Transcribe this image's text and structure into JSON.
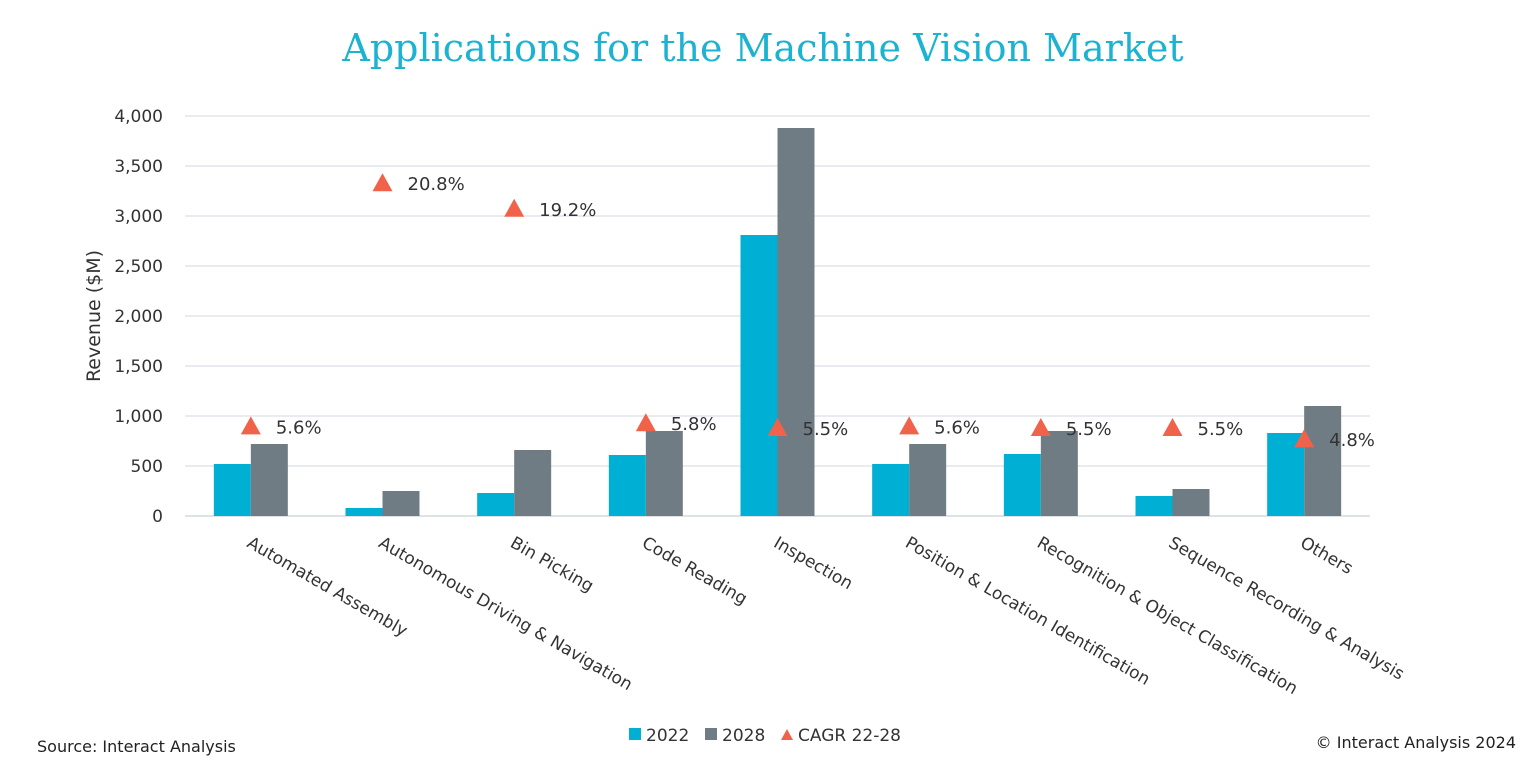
{
  "chart_data": {
    "type": "bar",
    "title": "Applications for the Machine Vision Market",
    "ylabel": "Revenue ($M)",
    "ylim": [
      0,
      4000
    ],
    "yticks": [
      "0",
      "500",
      "1,000",
      "1,500",
      "2,000",
      "2,500",
      "3,000",
      "3,500",
      "4,000"
    ],
    "grid": true,
    "legend_placement": "bottom",
    "categories": [
      "Automated Assembly",
      "Autonomous Driving & Navigation",
      "Bin Picking",
      "Code Reading",
      "Inspection",
      "Position & Location Identification",
      "Recognition & Object Classification",
      "Sequence Recording & Analysis",
      "Others"
    ],
    "series": [
      {
        "name": "2022",
        "type": "bar",
        "color": "#00b0d4",
        "values": [
          520,
          80,
          230,
          610,
          2810,
          520,
          620,
          200,
          830
        ]
      },
      {
        "name": "2028",
        "type": "bar",
        "color": "#707c84",
        "values": [
          720,
          250,
          660,
          850,
          3880,
          720,
          850,
          270,
          1100
        ]
      },
      {
        "name": "CAGR 22-28",
        "type": "marker",
        "marker": "triangle",
        "color": "#f0634a",
        "secondary_axis_range_pct": [
          0,
          25
        ],
        "values": [
          5.6,
          20.8,
          19.2,
          5.8,
          5.5,
          5.6,
          5.5,
          5.5,
          4.8
        ],
        "labels": [
          "5.6%",
          "20.8%",
          "19.2%",
          "5.8%",
          "5.5%",
          "5.6%",
          "5.5%",
          "5.5%",
          "4.8%"
        ]
      }
    ]
  },
  "footer": {
    "source": "Source: Interact Analysis",
    "copyright": "© Interact Analysis 2024"
  }
}
